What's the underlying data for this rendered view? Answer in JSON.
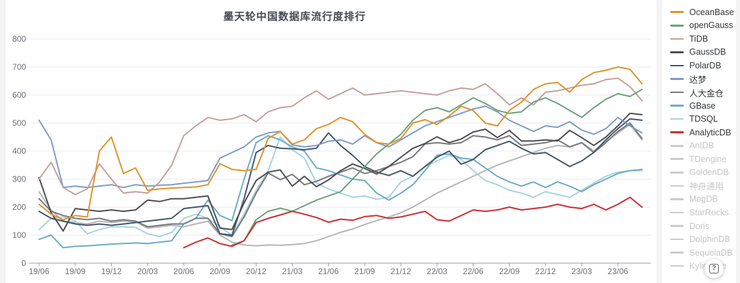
{
  "ui": {
    "help_label": "?"
  },
  "palette": {
    "page_background": "#f3f3f3",
    "card_background": "#ffffff",
    "title_color": "#454a52",
    "axis_label_color": "#6e7079",
    "axis_line_color": "#999ca3",
    "gridline_color": "#e4eaf4",
    "legend_active_text": "#333639",
    "legend_dimmed_text": "#c7c7c7",
    "legend_dimmed_swatch": "#cccccc"
  },
  "chart_data": {
    "type": "line",
    "title": "墨天轮中国数据库流行度排行",
    "xlabel": "",
    "ylabel": "",
    "ylim": [
      0,
      800
    ],
    "y_ticks": [
      0,
      100,
      200,
      300,
      400,
      500,
      600,
      700,
      800
    ],
    "grid": true,
    "legend_position": "right",
    "x_tick_labels": [
      "19/06",
      "19/09",
      "19/12",
      "20/03",
      "20/06",
      "20/09",
      "20/12",
      "21/03",
      "21/06",
      "21/09",
      "21/12",
      "22/03",
      "22/06",
      "22/09",
      "22/12",
      "23/03",
      "23/06"
    ],
    "months": [
      "19/06",
      "19/07",
      "19/08",
      "19/09",
      "19/10",
      "19/11",
      "19/12",
      "20/01",
      "20/02",
      "20/03",
      "20/04",
      "20/05",
      "20/06",
      "20/07",
      "20/08",
      "20/09",
      "20/10",
      "20/11",
      "20/12",
      "21/01",
      "21/02",
      "21/03",
      "21/04",
      "21/05",
      "21/06",
      "21/07",
      "21/08",
      "21/09",
      "21/10",
      "21/11",
      "21/12",
      "22/01",
      "22/02",
      "22/03",
      "22/04",
      "22/05",
      "22/06",
      "22/07",
      "22/08",
      "22/09",
      "22/10",
      "22/11",
      "22/12",
      "23/01",
      "23/02",
      "23/03",
      "23/04",
      "23/05",
      "23/06",
      "23/07",
      "23/08"
    ],
    "draw_order": [
      "TDengine",
      "TDSQL",
      "GBase",
      "人大金仓",
      "PolarDB",
      "GaussDB",
      "达梦",
      "TiDB",
      "openGauss",
      "AnalyticDB",
      "OceanBase"
    ],
    "series": [
      {
        "name": "OceanBase",
        "color": "#e09329",
        "state": "active",
        "values": [
          210,
          175,
          155,
          170,
          165,
          400,
          450,
          320,
          340,
          260,
          265,
          268,
          270,
          272,
          280,
          355,
          335,
          330,
          335,
          445,
          470,
          425,
          440,
          480,
          495,
          520,
          505,
          460,
          430,
          425,
          445,
          500,
          512,
          495,
          525,
          560,
          545,
          500,
          490,
          545,
          575,
          620,
          640,
          645,
          610,
          655,
          680,
          688,
          700,
          692,
          640
        ]
      },
      {
        "name": "openGauss",
        "color": "#6fa07e",
        "state": "active",
        "values": [
          null,
          null,
          null,
          null,
          null,
          null,
          null,
          null,
          null,
          null,
          null,
          null,
          null,
          null,
          null,
          null,
          65,
          80,
          155,
          185,
          196,
          185,
          205,
          225,
          240,
          255,
          300,
          345,
          390,
          425,
          460,
          510,
          545,
          555,
          540,
          565,
          590,
          570,
          545,
          535,
          540,
          575,
          590,
          570,
          545,
          520,
          555,
          585,
          605,
          595,
          620
        ]
      },
      {
        "name": "TiDB",
        "color": "#c6a09a",
        "state": "active",
        "values": [
          300,
          360,
          270,
          245,
          265,
          355,
          300,
          250,
          255,
          250,
          290,
          350,
          455,
          490,
          520,
          510,
          515,
          530,
          505,
          540,
          555,
          560,
          590,
          615,
          585,
          605,
          625,
          600,
          605,
          610,
          615,
          610,
          605,
          600,
          615,
          625,
          620,
          640,
          605,
          565,
          590,
          565,
          610,
          615,
          625,
          635,
          640,
          655,
          660,
          630,
          580
        ]
      },
      {
        "name": "GaussDB",
        "color": "#4d4e52",
        "state": "active",
        "values": [
          305,
          180,
          115,
          195,
          190,
          185,
          190,
          185,
          190,
          225,
          220,
          230,
          230,
          235,
          240,
          125,
          120,
          215,
          295,
          325,
          333,
          275,
          310,
          273,
          297,
          330,
          354,
          338,
          318,
          345,
          378,
          410,
          427,
          451,
          430,
          443,
          468,
          478,
          448,
          474,
          436,
          436,
          440,
          436,
          474,
          448,
          420,
          450,
          490,
          535,
          530
        ]
      },
      {
        "name": "PolarDB",
        "color": "#42566e",
        "state": "active",
        "values": [
          185,
          160,
          150,
          140,
          135,
          140,
          135,
          140,
          145,
          150,
          155,
          160,
          195,
          200,
          205,
          105,
          100,
          230,
          395,
          420,
          410,
          408,
          405,
          410,
          465,
          420,
          385,
          345,
          325,
          313,
          330,
          310,
          345,
          378,
          400,
          353,
          370,
          405,
          420,
          435,
          410,
          390,
          395,
          370,
          345,
          365,
          395,
          440,
          480,
          515,
          510
        ]
      },
      {
        "name": "达梦",
        "color": "#7e9bc7",
        "state": "active",
        "values": [
          510,
          440,
          270,
          275,
          270,
          275,
          280,
          270,
          280,
          275,
          278,
          280,
          285,
          290,
          295,
          375,
          395,
          415,
          450,
          465,
          470,
          422,
          415,
          420,
          435,
          440,
          425,
          455,
          430,
          415,
          440,
          465,
          490,
          505,
          520,
          535,
          550,
          560,
          540,
          510,
          490,
          470,
          490,
          485,
          505,
          475,
          460,
          480,
          520,
          490,
          465
        ]
      },
      {
        "name": "人大金仓",
        "color": "#77787b",
        "state": "active",
        "values": [
          230,
          185,
          170,
          160,
          155,
          160,
          150,
          155,
          150,
          130,
          135,
          140,
          140,
          160,
          160,
          105,
          95,
          165,
          250,
          322,
          298,
          317,
          280,
          292,
          310,
          325,
          340,
          320,
          330,
          345,
          360,
          380,
          425,
          430,
          425,
          430,
          455,
          450,
          440,
          455,
          420,
          425,
          430,
          440,
          415,
          430,
          395,
          430,
          470,
          500,
          445
        ]
      },
      {
        "name": "GBase",
        "color": "#6cacc8",
        "state": "active",
        "values": [
          85,
          100,
          55,
          60,
          62,
          65,
          68,
          70,
          72,
          70,
          75,
          80,
          140,
          160,
          225,
          170,
          152,
          300,
          430,
          455,
          440,
          415,
          400,
          340,
          330,
          315,
          300,
          295,
          250,
          225,
          250,
          280,
          330,
          385,
          390,
          375,
          370,
          340,
          310,
          290,
          275,
          290,
          270,
          290,
          275,
          255,
          280,
          300,
          320,
          330,
          335
        ]
      },
      {
        "name": "TDSQL",
        "color": "#a6d4e0",
        "state": "active",
        "values": [
          120,
          160,
          165,
          150,
          105,
          120,
          130,
          130,
          128,
          105,
          95,
          110,
          160,
          175,
          160,
          130,
          100,
          175,
          260,
          330,
          450,
          405,
          375,
          287,
          265,
          250,
          235,
          240,
          228,
          235,
          290,
          310,
          345,
          365,
          385,
          370,
          330,
          295,
          280,
          260,
          250,
          235,
          255,
          245,
          235,
          260,
          285,
          310,
          325,
          330,
          330
        ]
      },
      {
        "name": "AnalyticDB",
        "color": "#cc2d30",
        "state": "active",
        "values": [
          null,
          null,
          null,
          null,
          null,
          null,
          null,
          null,
          null,
          null,
          null,
          null,
          55,
          75,
          90,
          70,
          60,
          80,
          145,
          160,
          172,
          185,
          175,
          163,
          146,
          157,
          153,
          166,
          170,
          160,
          165,
          175,
          185,
          155,
          150,
          170,
          190,
          185,
          190,
          200,
          190,
          195,
          200,
          210,
          200,
          195,
          210,
          190,
          210,
          235,
          200
        ]
      },
      {
        "name": "AntDB",
        "color": "#cccccc",
        "state": "dimmed",
        "values": null
      },
      {
        "name": "TDengine",
        "color": "#b5b5b5",
        "state": "dimmed",
        "values": [
          255,
          190,
          150,
          145,
          140,
          150,
          145,
          150,
          148,
          125,
          130,
          135,
          130,
          140,
          150,
          100,
          75,
          65,
          62,
          65,
          64,
          66,
          70,
          80,
          95,
          110,
          122,
          138,
          152,
          165,
          180,
          200,
          225,
          250,
          270,
          290,
          310,
          330,
          350,
          365,
          380,
          395,
          410,
          420,
          415,
          430,
          400,
          435,
          465,
          495,
          440
        ]
      },
      {
        "name": "GoldenDB",
        "color": "#cccccc",
        "state": "dimmed",
        "values": null
      },
      {
        "name": "神舟通用",
        "color": "#cccccc",
        "state": "dimmed",
        "values": null
      },
      {
        "name": "MogDB",
        "color": "#cccccc",
        "state": "dimmed",
        "values": null
      },
      {
        "name": "StarRocks",
        "color": "#cccccc",
        "state": "dimmed",
        "values": null
      },
      {
        "name": "Doris",
        "color": "#cccccc",
        "state": "dimmed",
        "values": null
      },
      {
        "name": "DolphinDB",
        "color": "#cccccc",
        "state": "dimmed",
        "values": null
      },
      {
        "name": "SequoiaDB",
        "color": "#cccccc",
        "state": "dimmed",
        "values": null
      },
      {
        "name": "Kyligence",
        "color": "#cccccc",
        "state": "dimmed",
        "values": null
      }
    ]
  }
}
